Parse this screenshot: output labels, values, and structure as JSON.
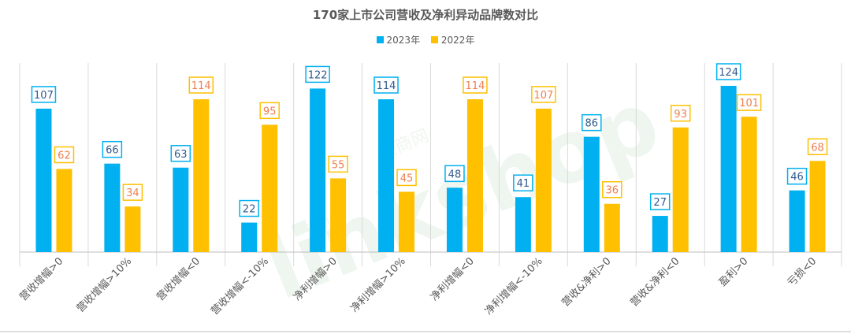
{
  "chart_data": {
    "type": "bar",
    "title": "170家上市公司营收及净利异动品牌数对比",
    "categories": [
      "营收增幅>0",
      "营收增幅>10%",
      "营收增幅<0",
      "营收增幅<-10%",
      "净利增幅>0",
      "净利增幅>10%",
      "净利增幅<0",
      "净利增幅<-10%",
      "营收&净利>0",
      "营收&净利<0",
      "盈利>0",
      "亏损<0"
    ],
    "series": [
      {
        "name": "2023年",
        "color": "#00B0F0",
        "values": [
          107,
          66,
          63,
          22,
          122,
          114,
          48,
          41,
          86,
          27,
          124,
          46
        ]
      },
      {
        "name": "2022年",
        "color": "#FFC000",
        "values": [
          62,
          34,
          114,
          95,
          55,
          45,
          114,
          107,
          36,
          93,
          101,
          68
        ]
      }
    ],
    "ylim": [
      0,
      124
    ],
    "legend_position": "top-center",
    "grid": false,
    "label_colors": {
      "series_2023": "#2E5A8E",
      "series_2022": "#F07F4E"
    }
  },
  "watermark": {
    "text_main": "linkshop",
    "text_cn": "联商网",
    "text_com": ".com"
  }
}
